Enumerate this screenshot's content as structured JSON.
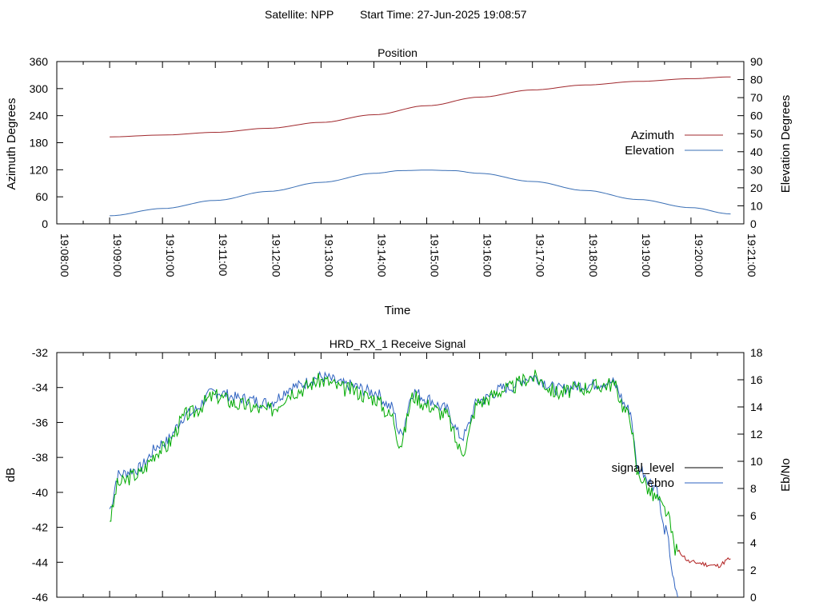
{
  "header": {
    "satellite": "Satellite: NPP",
    "start_time": "Start Time: 27-Jun-2025 19:08:57"
  },
  "colors": {
    "azimuth": "#a0282d",
    "elevation": "#3a6fb5",
    "signal_level": "#00aa00",
    "signal_level_tail": "#b01e1e",
    "ebno": "#2e62c0",
    "axis": "#000000"
  },
  "chart_data": [
    {
      "type": "line",
      "title": "Position",
      "xlabel": "Time",
      "ylabel": "Azimuth Degrees",
      "y2label": "Elevation Degrees",
      "xlim": [
        "19:08:00",
        "19:21:00"
      ],
      "ylim": [
        0,
        360
      ],
      "y2lim": [
        0,
        90
      ],
      "x_ticks": [
        "19:08:00",
        "19:09:00",
        "19:10:00",
        "19:11:00",
        "19:12:00",
        "19:13:00",
        "19:14:00",
        "19:15:00",
        "19:16:00",
        "19:17:00",
        "19:18:00",
        "19:19:00",
        "19:20:00",
        "19:21:00"
      ],
      "y_ticks": [
        0,
        60,
        120,
        180,
        240,
        300,
        360
      ],
      "y2_ticks": [
        0,
        10,
        20,
        30,
        40,
        50,
        60,
        70,
        80,
        90
      ],
      "legend_position": "right",
      "series": [
        {
          "name": "Azimuth",
          "axis": "y",
          "x": [
            "19:09:00",
            "19:10:00",
            "19:11:00",
            "19:12:00",
            "19:13:00",
            "19:14:00",
            "19:15:00",
            "19:16:00",
            "19:17:00",
            "19:18:00",
            "19:19:00",
            "19:20:00",
            "19:20:45"
          ],
          "values": [
            193,
            197,
            203,
            212,
            225,
            242,
            262,
            281,
            297,
            308,
            316,
            322,
            326
          ]
        },
        {
          "name": "Elevation",
          "axis": "y2",
          "x": [
            "19:09:00",
            "19:10:00",
            "19:11:00",
            "19:12:00",
            "19:13:00",
            "19:14:00",
            "19:14:30",
            "19:15:00",
            "19:15:30",
            "19:16:00",
            "19:17:00",
            "19:18:00",
            "19:19:00",
            "19:20:00",
            "19:20:45"
          ],
          "values": [
            4.5,
            8.5,
            13,
            18,
            23,
            28,
            29.5,
            29.8,
            29.5,
            28,
            23.5,
            18.5,
            13.5,
            9,
            5.5
          ]
        }
      ]
    },
    {
      "type": "line",
      "title": "HRD_RX_1 Receive Signal",
      "ylabel": "dB",
      "y2label": "Eb/No",
      "xlim": [
        "19:08:00",
        "19:21:00"
      ],
      "ylim": [
        -46,
        -32
      ],
      "y2lim": [
        0,
        18
      ],
      "y_ticks": [
        -32,
        -34,
        -36,
        -38,
        -40,
        -42,
        -44,
        -46
      ],
      "y2_ticks": [
        0,
        2,
        4,
        6,
        8,
        10,
        12,
        14,
        16,
        18
      ],
      "legend_position": "right",
      "series": [
        {
          "name": "signal_level",
          "axis": "y",
          "x": [
            "19:09:00",
            "19:09:10",
            "19:09:30",
            "19:10:00",
            "19:10:30",
            "19:11:00",
            "19:11:30",
            "19:12:00",
            "19:12:30",
            "19:13:00",
            "19:13:30",
            "19:14:00",
            "19:14:20",
            "19:14:30",
            "19:14:45",
            "19:15:00",
            "19:15:20",
            "19:15:40",
            "19:16:00",
            "19:16:30",
            "19:17:00",
            "19:17:30",
            "19:18:00",
            "19:18:30",
            "19:18:50",
            "19:19:00",
            "19:19:20",
            "19:19:30",
            "19:19:45",
            "19:20:00",
            "19:20:30",
            "19:20:45"
          ],
          "values": [
            -41.5,
            -39.5,
            -39.0,
            -37.5,
            -35.5,
            -34.5,
            -35.0,
            -35.3,
            -34.2,
            -33.6,
            -34.1,
            -34.6,
            -35.6,
            -37.2,
            -34.5,
            -35.0,
            -35.5,
            -37.6,
            -34.8,
            -34.1,
            -33.4,
            -34.3,
            -34.0,
            -33.8,
            -35.6,
            -39.0,
            -40.3,
            -41.0,
            -43.4,
            -44.0,
            -44.2,
            -43.8
          ]
        },
        {
          "name": "ebno",
          "axis": "y2",
          "x": [
            "19:09:00",
            "19:09:10",
            "19:09:30",
            "19:10:00",
            "19:10:30",
            "19:11:00",
            "19:11:30",
            "19:12:00",
            "19:12:30",
            "19:13:00",
            "19:13:30",
            "19:14:00",
            "19:14:20",
            "19:14:30",
            "19:14:45",
            "19:15:00",
            "19:15:20",
            "19:15:40",
            "19:16:00",
            "19:16:30",
            "19:17:00",
            "19:17:30",
            "19:18:00",
            "19:18:30",
            "19:18:50",
            "19:19:00",
            "19:19:20",
            "19:19:30",
            "19:19:45"
          ],
          "values": [
            6.5,
            9.0,
            9.4,
            11.3,
            13.5,
            15.1,
            14.6,
            14.3,
            15.5,
            16.2,
            15.6,
            15.1,
            14.0,
            12.0,
            15.1,
            14.6,
            13.9,
            11.8,
            14.5,
            15.4,
            16.2,
            15.3,
            15.6,
            15.8,
            13.8,
            9.5,
            8.2,
            5.0,
            0.0
          ]
        }
      ]
    }
  ]
}
